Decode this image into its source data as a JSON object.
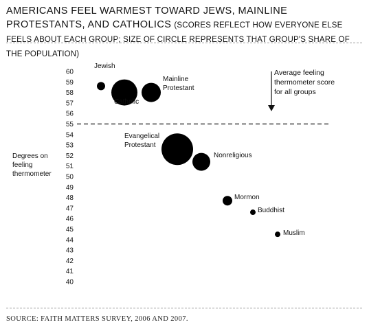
{
  "title": {
    "main": "AMERICANS FEEL WARMEST TOWARD JEWS, MAINLINE PROTESTANTS, AND CATHOLICS",
    "subtitle": "(SCORES REFLECT HOW EVERYONE ELSE FEELS ABOUT EACH GROUP; SIZE OF CIRCLE REPRESENTS THAT GROUP'S SHARE OF THE POPULATION)"
  },
  "source": "SOURCE: FAITH MATTERS SURVEY, 2006 AND 2007.",
  "colors": {
    "bubble": "#000000",
    "text": "#111111",
    "rule": "#9a9a9a"
  },
  "chart_data": {
    "type": "scatter",
    "encoding": "bubble",
    "ylabel": "Degrees on feeling thermometer",
    "ylim": [
      40,
      60
    ],
    "yticks": [
      40,
      41,
      42,
      43,
      44,
      45,
      46,
      47,
      48,
      49,
      50,
      51,
      52,
      53,
      54,
      55,
      56,
      57,
      58,
      59,
      60
    ],
    "x_axis": "none",
    "grid": false,
    "reference_line": {
      "y": 55,
      "style": "dashed",
      "label": "Average feeling thermometer score for all groups"
    },
    "series": [
      {
        "points": [
          {
            "label": "Jewish",
            "y": 58.6
          },
          {
            "label": "Catholic",
            "y": 58.0
          },
          {
            "label": "Mainline Protestant",
            "y": 58.0
          },
          {
            "label": "Evangelical Protestant",
            "y": 52.6
          },
          {
            "label": "Nonreligious",
            "y": 51.4
          },
          {
            "label": "Mormon",
            "y": 47.7
          },
          {
            "label": "Buddhist",
            "y": 46.6
          },
          {
            "label": "Muslim",
            "y": 44.5
          }
        ]
      }
    ]
  }
}
